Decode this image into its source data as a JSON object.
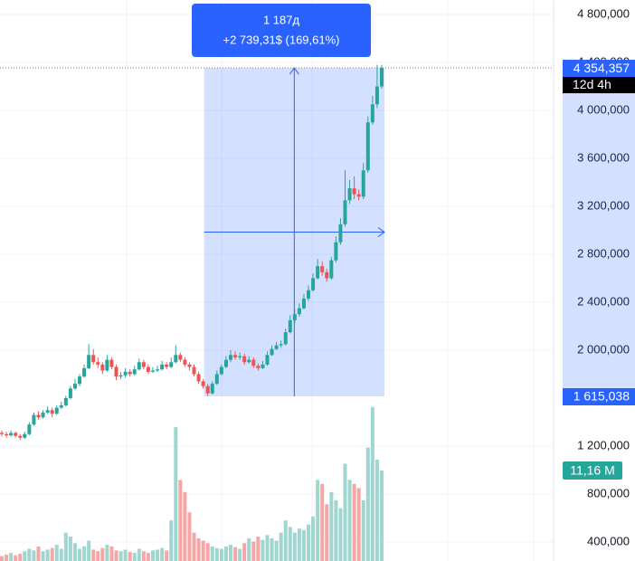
{
  "chart_data": {
    "type": "candlestick",
    "ylim": [
      241600,
      4920755
    ],
    "yticks": [
      {
        "value": 4800000,
        "label": "4 800,000"
      },
      {
        "value": 4400000,
        "label": "4 400,000"
      },
      {
        "value": 4000000,
        "label": "4 000,000"
      },
      {
        "value": 3600000,
        "label": "3 600,000"
      },
      {
        "value": 3200000,
        "label": "3 200,000"
      },
      {
        "value": 2800000,
        "label": "2 800,000"
      },
      {
        "value": 2400000,
        "label": "2 400,000"
      },
      {
        "value": 2000000,
        "label": "2 000,000"
      },
      {
        "value": 1200000,
        "label": "1 200,000"
      },
      {
        "value": 800000,
        "label": "800,000"
      },
      {
        "value": 400000,
        "label": "400,000"
      }
    ],
    "grid": true,
    "up_color": "#26a69a",
    "down_color": "#ef5350",
    "volume_up_color": "#9fd6cf",
    "volume_down_color": "#f5a6a5",
    "vlim": [
      0,
      25
    ],
    "series": [
      {
        "open": [
          1310000,
          1300000,
          1290000,
          1310000,
          1285000,
          1270000,
          1300000,
          1380000,
          1460000,
          1440000,
          1480000,
          1500000,
          1470000,
          1520000,
          1540000,
          1600000,
          1680000,
          1720000,
          1780000,
          1850000,
          1960000,
          1900000,
          1880000,
          1830000,
          1920000,
          1860000,
          1780000,
          1790000,
          1820000,
          1800000,
          1840000,
          1900000,
          1860000,
          1820000,
          1830000,
          1840000,
          1880000,
          1860000,
          1900000,
          1960000,
          1920000,
          1880000,
          1860000,
          1800000,
          1740000,
          1700000,
          1640000,
          1720000,
          1800000,
          1860000,
          1920000,
          1960000,
          1940000,
          1950000,
          1900000,
          1920000,
          1870000,
          1850000,
          1880000,
          1960000,
          2010000,
          2040000,
          2050000,
          2150000,
          2250000,
          2300000,
          2350000,
          2430000,
          2500000,
          2600000,
          2700000,
          2650000,
          2600000,
          2750000,
          2900000,
          3050000,
          3250000,
          3350000,
          3300000,
          3280000,
          3500000,
          3900000,
          4050000,
          4200000
        ],
        "high": [
          1330000,
          1320000,
          1330000,
          1320000,
          1300000,
          1320000,
          1400000,
          1480000,
          1490000,
          1500000,
          1530000,
          1520000,
          1540000,
          1570000,
          1620000,
          1700000,
          1760000,
          1800000,
          1880000,
          2050000,
          2010000,
          1940000,
          1900000,
          1960000,
          1940000,
          1880000,
          1820000,
          1850000,
          1840000,
          1870000,
          1930000,
          1920000,
          1880000,
          1860000,
          1870000,
          1910000,
          1900000,
          1940000,
          2040000,
          1980000,
          1940000,
          1900000,
          1880000,
          1820000,
          1760000,
          1720000,
          1740000,
          1830000,
          1880000,
          1950000,
          2000000,
          1990000,
          1980000,
          1970000,
          1950000,
          1940000,
          1890000,
          1910000,
          1990000,
          2040000,
          2070000,
          2080000,
          2180000,
          2290000,
          2340000,
          2390000,
          2470000,
          2540000,
          2640000,
          2760000,
          2740000,
          2680000,
          2780000,
          2950000,
          3100000,
          3500000,
          3420000,
          3450000,
          3340000,
          3560000,
          3950000,
          4120000,
          4380000,
          4380000
        ],
        "low": [
          1280000,
          1270000,
          1280000,
          1270000,
          1250000,
          1260000,
          1290000,
          1370000,
          1420000,
          1430000,
          1470000,
          1440000,
          1460000,
          1510000,
          1530000,
          1590000,
          1670000,
          1700000,
          1770000,
          1840000,
          1880000,
          1850000,
          1800000,
          1820000,
          1840000,
          1750000,
          1760000,
          1770000,
          1780000,
          1790000,
          1830000,
          1840000,
          1800000,
          1810000,
          1820000,
          1830000,
          1840000,
          1850000,
          1890000,
          1900000,
          1860000,
          1830000,
          1780000,
          1720000,
          1680000,
          1615038,
          1630000,
          1710000,
          1790000,
          1850000,
          1900000,
          1920000,
          1920000,
          1880000,
          1890000,
          1850000,
          1830000,
          1840000,
          1870000,
          1950000,
          2000000,
          2020000,
          2040000,
          2140000,
          2230000,
          2280000,
          2340000,
          2410000,
          2490000,
          2590000,
          2620000,
          2570000,
          2590000,
          2730000,
          2880000,
          3030000,
          3220000,
          3260000,
          3250000,
          3260000,
          3480000,
          3880000,
          4020000,
          4180000
        ],
        "close": [
          1300000,
          1290000,
          1310000,
          1285000,
          1270000,
          1300000,
          1380000,
          1460000,
          1440000,
          1480000,
          1500000,
          1470000,
          1520000,
          1540000,
          1600000,
          1680000,
          1720000,
          1780000,
          1850000,
          1960000,
          1900000,
          1880000,
          1830000,
          1920000,
          1860000,
          1780000,
          1790000,
          1820000,
          1800000,
          1840000,
          1900000,
          1860000,
          1820000,
          1830000,
          1840000,
          1880000,
          1860000,
          1900000,
          1960000,
          1920000,
          1880000,
          1860000,
          1800000,
          1740000,
          1700000,
          1640000,
          1720000,
          1800000,
          1860000,
          1920000,
          1960000,
          1940000,
          1950000,
          1900000,
          1920000,
          1870000,
          1850000,
          1880000,
          1960000,
          2010000,
          2040000,
          2050000,
          2150000,
          2250000,
          2300000,
          2350000,
          2430000,
          2500000,
          2600000,
          2700000,
          2650000,
          2600000,
          2750000,
          2900000,
          3050000,
          3250000,
          3350000,
          3300000,
          3280000,
          3500000,
          3900000,
          4050000,
          4200000,
          4354357
        ],
        "volume": [
          0.6,
          0.8,
          1.0,
          0.7,
          0.9,
          1.2,
          1.5,
          1.3,
          1.8,
          1.2,
          1.4,
          1.6,
          2.0,
          1.5,
          3.5,
          3.0,
          2.2,
          1.5,
          1.8,
          2.5,
          1.4,
          1.2,
          1.6,
          2.0,
          1.8,
          1.3,
          1.2,
          1.4,
          1.1,
          1.0,
          1.5,
          1.2,
          1.0,
          1.3,
          1.4,
          1.6,
          1.3,
          5.0,
          16.5,
          10.0,
          8.5,
          6.0,
          3.5,
          2.8,
          2.5,
          2.2,
          1.8,
          1.6,
          1.5,
          1.8,
          2.0,
          1.7,
          1.5,
          2.2,
          2.8,
          2.4,
          3.0,
          2.6,
          3.2,
          2.8,
          2.5,
          3.5,
          5.0,
          4.2,
          3.5,
          4.0,
          3.8,
          4.5,
          5.5,
          10.0,
          9.5,
          7.0,
          8.5,
          7.5,
          6.5,
          12.0,
          10.0,
          9.5,
          9.0,
          7.5,
          14.0,
          19.0,
          12.5,
          11.16
        ]
      }
    ],
    "measure": {
      "duration": "1 187д",
      "change": "+2 739,31$ (169,61%)",
      "start": 44,
      "end": 83,
      "from_price": 1615038,
      "to_price": 4354357
    },
    "last_price": {
      "value": 4354357,
      "label": "4 354,357"
    },
    "countdown": "12d 4h",
    "low_price": {
      "value": 1615038,
      "label": "1 615,038"
    },
    "last_volume": {
      "value": 11.16,
      "label": "11,16 M"
    }
  }
}
